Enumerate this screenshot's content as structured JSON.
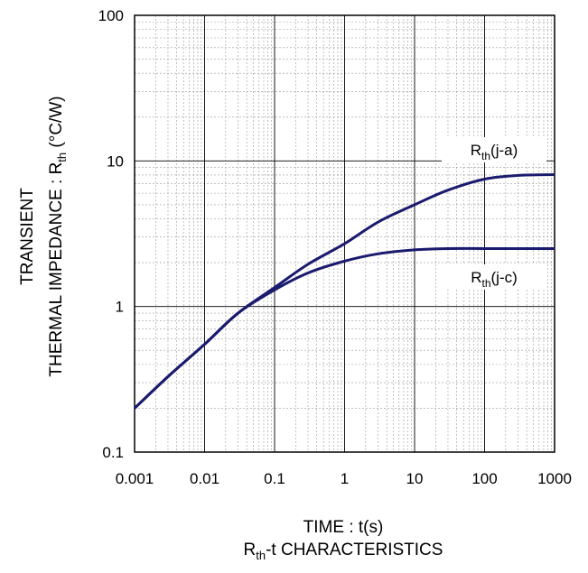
{
  "chart_data": {
    "type": "line",
    "title": "Rth-t CHARACTERISTICS",
    "title_parts": {
      "main": "R",
      "sub": "th",
      "rest": "-t CHARACTERISTICS"
    },
    "xlabel": "TIME : t(s)",
    "ylabel_line1": "TRANSIENT",
    "ylabel_line2": "THERMAL IMPEDANCE : Rth (°C/W)",
    "ylabel_line2_parts": {
      "main": "THERMAL IMPEDANCE : R",
      "sub": "th",
      "rest": " (°C/W)"
    },
    "x_scale": "log",
    "y_scale": "log",
    "xlim": [
      0.001,
      1000
    ],
    "ylim": [
      0.1,
      100
    ],
    "x_ticks": [
      "0.001",
      "0.01",
      "0.1",
      "1",
      "10",
      "100",
      "1000"
    ],
    "y_ticks": [
      "0.1",
      "1",
      "10",
      "100"
    ],
    "grid": true,
    "line_color": "#1a1a6e",
    "series": [
      {
        "name": "Rth(j-a)",
        "label_parts": {
          "main": "R",
          "sub": "th",
          "rest": "(j-a)"
        },
        "x": [
          0.001,
          0.003,
          0.01,
          0.03,
          0.1,
          0.3,
          1,
          3,
          10,
          30,
          100,
          300,
          1000
        ],
        "y": [
          0.2,
          0.33,
          0.55,
          0.9,
          1.35,
          1.95,
          2.7,
          3.8,
          5.0,
          6.3,
          7.5,
          7.95,
          8.05
        ]
      },
      {
        "name": "Rth(j-c)",
        "label_parts": {
          "main": "R",
          "sub": "th",
          "rest": "(j-c)"
        },
        "x": [
          0.001,
          0.003,
          0.01,
          0.03,
          0.1,
          0.3,
          1,
          3,
          10,
          30,
          100,
          300,
          1000
        ],
        "y": [
          0.2,
          0.33,
          0.55,
          0.9,
          1.3,
          1.7,
          2.05,
          2.3,
          2.45,
          2.5,
          2.5,
          2.5,
          2.5
        ]
      }
    ]
  }
}
